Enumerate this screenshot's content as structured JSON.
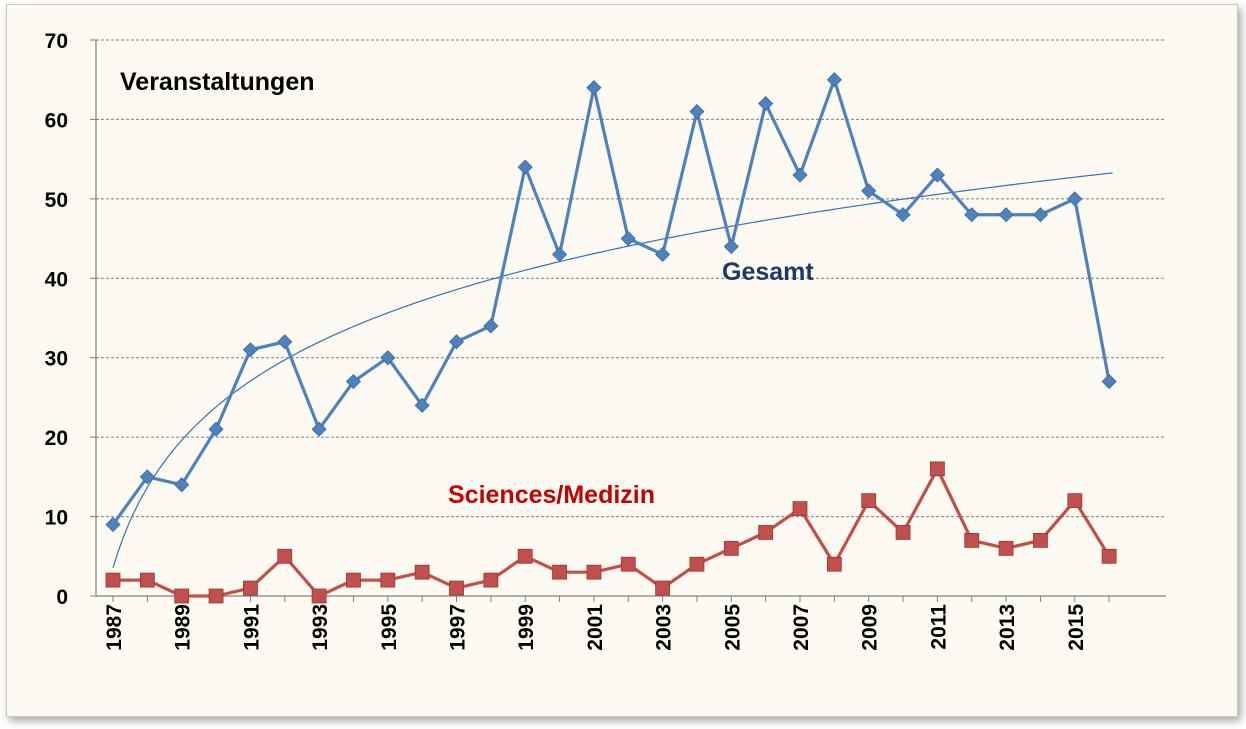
{
  "chart_data": {
    "type": "line",
    "title": "Veranstaltungen",
    "x": [
      1987,
      1988,
      1989,
      1990,
      1991,
      1992,
      1993,
      1994,
      1995,
      1996,
      1997,
      1998,
      1999,
      2000,
      2001,
      2002,
      2003,
      2004,
      2005,
      2006,
      2007,
      2008,
      2009,
      2010,
      2011,
      2012,
      2013,
      2014,
      2015,
      2016
    ],
    "x_tick_labels": [
      "1987",
      "1989",
      "1991",
      "1993",
      "1995",
      "1997",
      "1999",
      "2001",
      "2003",
      "2005",
      "2007",
      "2009",
      "2011",
      "2013",
      "2015"
    ],
    "ylim": [
      0,
      70
    ],
    "y_ticks": [
      0,
      10,
      20,
      30,
      40,
      50,
      60,
      70
    ],
    "grid": "horizontal dashed",
    "series": [
      {
        "name": "Gesamt",
        "color": "#4f81bd",
        "marker": "diamond",
        "values": [
          9,
          15,
          14,
          21,
          31,
          32,
          21,
          27,
          30,
          24,
          32,
          34,
          54,
          43,
          64,
          45,
          43,
          61,
          44,
          62,
          53,
          65,
          51,
          48,
          53,
          48,
          48,
          48,
          50,
          27
        ]
      },
      {
        "name": "Sciences/Medizin",
        "color": "#c0504d",
        "marker": "square",
        "values": [
          2,
          2,
          0,
          0,
          1,
          5,
          0,
          2,
          2,
          3,
          1,
          2,
          5,
          3,
          3,
          4,
          1,
          4,
          6,
          8,
          11,
          4,
          12,
          8,
          16,
          7,
          6,
          7,
          12,
          5
        ]
      }
    ],
    "trendline": {
      "series": "Gesamt",
      "kind": "logarithmic",
      "color": "#3a6fb0"
    }
  }
}
